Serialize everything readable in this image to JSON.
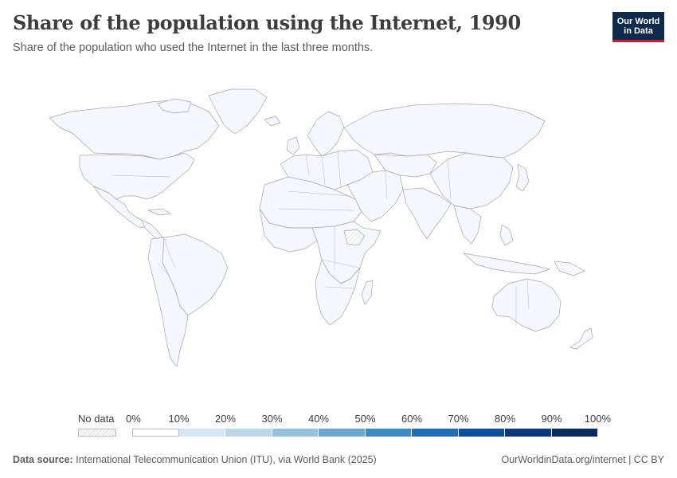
{
  "header": {
    "title": "Share of the population using the Internet, 1990",
    "subtitle": "Share of the population who used the Internet in the last three months.",
    "logo_line1": "Our World",
    "logo_line2": "in Data"
  },
  "colors": {
    "land_fill": "#f4f7fd",
    "border": "#a6a6a6",
    "no_data_hatch": "#d9d9d9",
    "brand_navy": "#0f2a4d",
    "brand_red": "#c8202f"
  },
  "map_data": {
    "variable": "Share of the population using the Internet",
    "year": "1990",
    "value_for_all_countries_with_data": "0%",
    "no_data_regions": [
      "Ethiopia"
    ]
  },
  "legend": {
    "no_data_label": "No data",
    "ticks": [
      "0%",
      "10%",
      "20%",
      "30%",
      "40%",
      "50%",
      "60%",
      "70%",
      "80%",
      "90%",
      "100%"
    ],
    "bin_colors": [
      "#ffffff",
      "#d6e5f3",
      "#bcd6ea",
      "#97c2df",
      "#6aa8d2",
      "#3f8bc4",
      "#1f6db3",
      "#0d4f9a",
      "#09397c",
      "#082a5f"
    ]
  },
  "footer": {
    "source_label": "Data source:",
    "source_text": "International Telecommunication Union (ITU), via World Bank (2025)",
    "credit": "OurWorldinData.org/internet | CC BY"
  }
}
